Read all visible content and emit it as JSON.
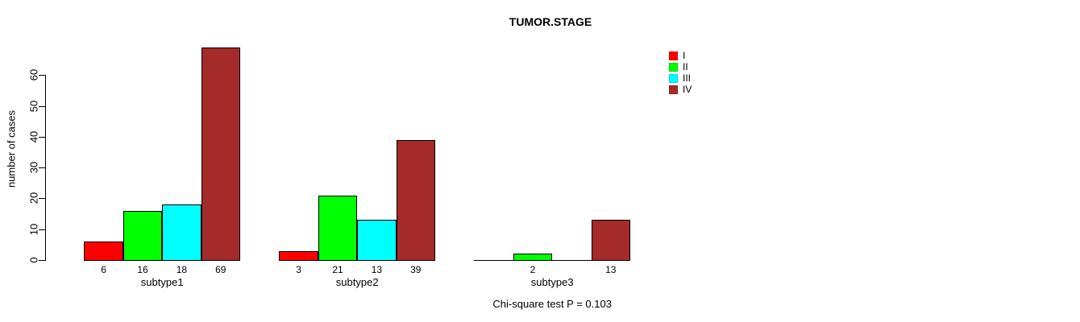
{
  "chart_data": {
    "type": "bar",
    "title": "TUMOR.STAGE",
    "xlabel": "",
    "ylabel": "number of cases",
    "categories": [
      "subtype1",
      "subtype2",
      "subtype3"
    ],
    "series": [
      {
        "name": "I",
        "color": "#ff0000",
        "values": [
          6,
          3,
          0
        ]
      },
      {
        "name": "II",
        "color": "#00ff00",
        "values": [
          16,
          21,
          2
        ]
      },
      {
        "name": "III",
        "color": "#00ffff",
        "values": [
          18,
          13,
          0
        ]
      },
      {
        "name": "IV",
        "color": "#a52a2a",
        "values": [
          69,
          39,
          13
        ]
      }
    ],
    "bar_value_labels": [
      [
        "6",
        "16",
        "18",
        "69"
      ],
      [
        "3",
        "21",
        "13",
        "39"
      ],
      [
        "",
        "2",
        "",
        "13"
      ]
    ],
    "yticks": [
      0,
      10,
      20,
      30,
      40,
      50,
      60
    ],
    "ylim": [
      0,
      69
    ],
    "grid": false,
    "legend_position": "right",
    "annotation": "Chi-square test P = 0.103"
  }
}
